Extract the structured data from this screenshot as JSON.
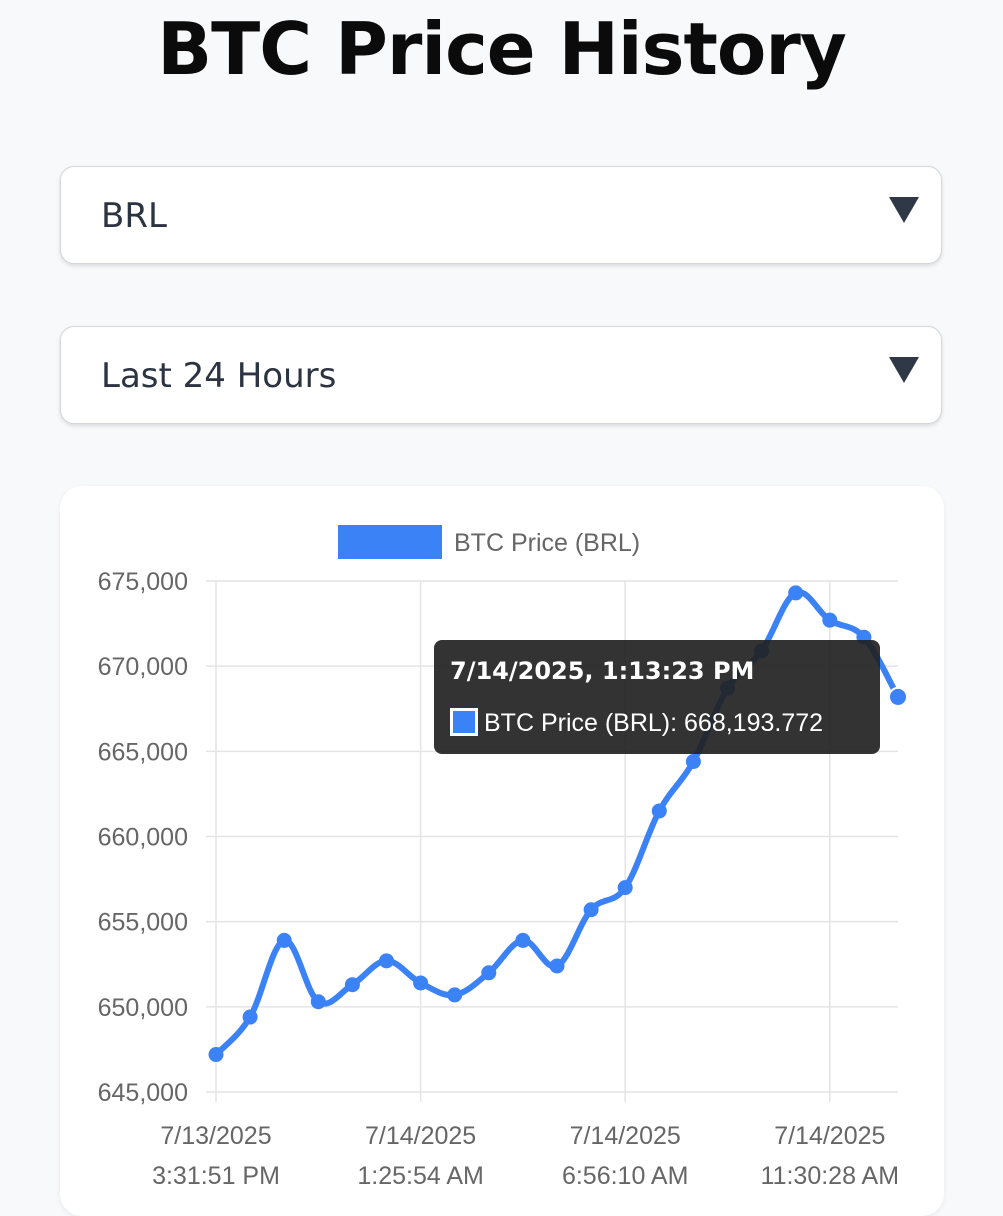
{
  "header": {
    "title": "BTC Price History"
  },
  "controls": {
    "currency": {
      "selected": "BRL"
    },
    "range": {
      "selected": "Last 24 Hours"
    }
  },
  "colors": {
    "line": "#3b82f6",
    "grid": "#e4e4e4",
    "tooltip_bg": "#222222"
  },
  "chart_data": {
    "type": "line",
    "title": "",
    "xlabel": "",
    "ylabel": "",
    "legend": {
      "position": "top",
      "label": "BTC Price (BRL)"
    },
    "grid": true,
    "ylim": [
      645000,
      675000
    ],
    "yticks": [
      "645,000",
      "650,000",
      "655,000",
      "660,000",
      "665,000",
      "670,000",
      "675,000"
    ],
    "xticks": [
      {
        "line1": "7/13/2025",
        "line2": "3:31:51 PM"
      },
      {
        "line1": "7/14/2025",
        "line2": "1:25:54 AM"
      },
      {
        "line1": "7/14/2025",
        "line2": "6:56:10 AM"
      },
      {
        "line1": "7/14/2025",
        "line2": "11:30:28 AM"
      }
    ],
    "series": [
      {
        "name": "BTC Price (BRL)",
        "values": [
          647200,
          649400,
          653900,
          650300,
          651300,
          652700,
          651400,
          650700,
          652000,
          653900,
          652400,
          655700,
          657000,
          661500,
          664400,
          668700,
          670900,
          674300,
          672700,
          671700,
          668193.772
        ]
      }
    ],
    "tooltip": {
      "title": "7/14/2025, 1:13:23 PM",
      "label": "BTC Price (BRL): 668,193.772",
      "point_index": 20
    }
  }
}
